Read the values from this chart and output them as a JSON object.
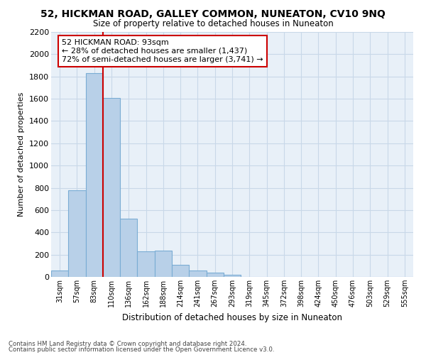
{
  "title_line1": "52, HICKMAN ROAD, GALLEY COMMON, NUNEATON, CV10 9NQ",
  "title_line2": "Size of property relative to detached houses in Nuneaton",
  "xlabel": "Distribution of detached houses by size in Nuneaton",
  "ylabel": "Number of detached properties",
  "categories": [
    "31sqm",
    "57sqm",
    "83sqm",
    "110sqm",
    "136sqm",
    "162sqm",
    "188sqm",
    "214sqm",
    "241sqm",
    "267sqm",
    "293sqm",
    "319sqm",
    "345sqm",
    "372sqm",
    "398sqm",
    "424sqm",
    "450sqm",
    "476sqm",
    "503sqm",
    "529sqm",
    "555sqm"
  ],
  "values": [
    55,
    780,
    1830,
    1610,
    520,
    230,
    235,
    110,
    55,
    40,
    20,
    0,
    0,
    0,
    0,
    0,
    0,
    0,
    0,
    0,
    0
  ],
  "bar_color": "#b8d0e8",
  "bar_edge_color": "#7aacd4",
  "grid_color": "#c8d8e8",
  "background_color": "#e8f0f8",
  "annotation_box_color": "#ffffff",
  "annotation_border_color": "#cc0000",
  "property_line_color": "#cc0000",
  "annotation_text_line1": "52 HICKMAN ROAD: 93sqm",
  "annotation_text_line2": "← 28% of detached houses are smaller (1,437)",
  "annotation_text_line3": "72% of semi-detached houses are larger (3,741) →",
  "ylim": [
    0,
    2200
  ],
  "yticks": [
    0,
    200,
    400,
    600,
    800,
    1000,
    1200,
    1400,
    1600,
    1800,
    2000,
    2200
  ],
  "footnote1": "Contains HM Land Registry data © Crown copyright and database right 2024.",
  "footnote2": "Contains public sector information licensed under the Open Government Licence v3.0."
}
